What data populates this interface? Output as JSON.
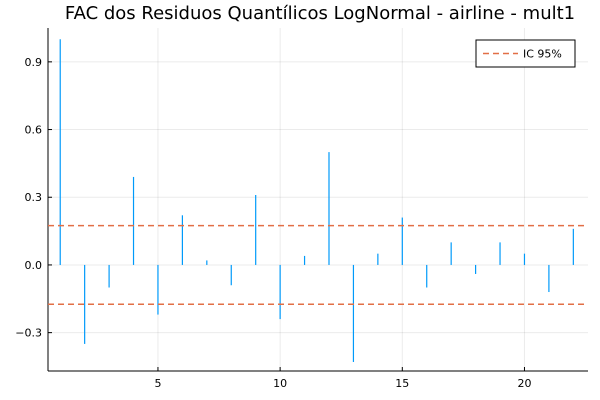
{
  "chart_data": {
    "type": "bar",
    "title": "FAC dos Residuos Quantílicos LogNormal - airline - mult1",
    "xlabel": "",
    "ylabel": "",
    "x": [
      1,
      2,
      3,
      4,
      5,
      6,
      7,
      8,
      9,
      10,
      11,
      12,
      13,
      14,
      15,
      16,
      17,
      18,
      19,
      20,
      21,
      22
    ],
    "values": [
      1.0,
      -0.35,
      -0.1,
      0.39,
      -0.22,
      0.22,
      0.02,
      -0.09,
      0.31,
      -0.24,
      0.04,
      0.5,
      -0.43,
      0.05,
      0.21,
      -0.1,
      0.1,
      -0.04,
      0.1,
      0.05,
      -0.12,
      0.16
    ],
    "xlim": [
      0.5,
      22.6
    ],
    "ylim": [
      -0.47,
      1.05
    ],
    "xticks": [
      5,
      10,
      15,
      20
    ],
    "yticks": [
      -0.3,
      0.0,
      0.3,
      0.6,
      0.9
    ],
    "ytick_labels": [
      "−0.3",
      "0.0",
      "0.3",
      "0.6",
      "0.9"
    ],
    "confidence_band": [
      0.174,
      -0.174
    ],
    "legend": {
      "entries": [
        "IC 95%"
      ],
      "placement": "top-right"
    },
    "grid": true,
    "colors": {
      "bars": "#009AFA",
      "ci": "#E26F46"
    }
  }
}
